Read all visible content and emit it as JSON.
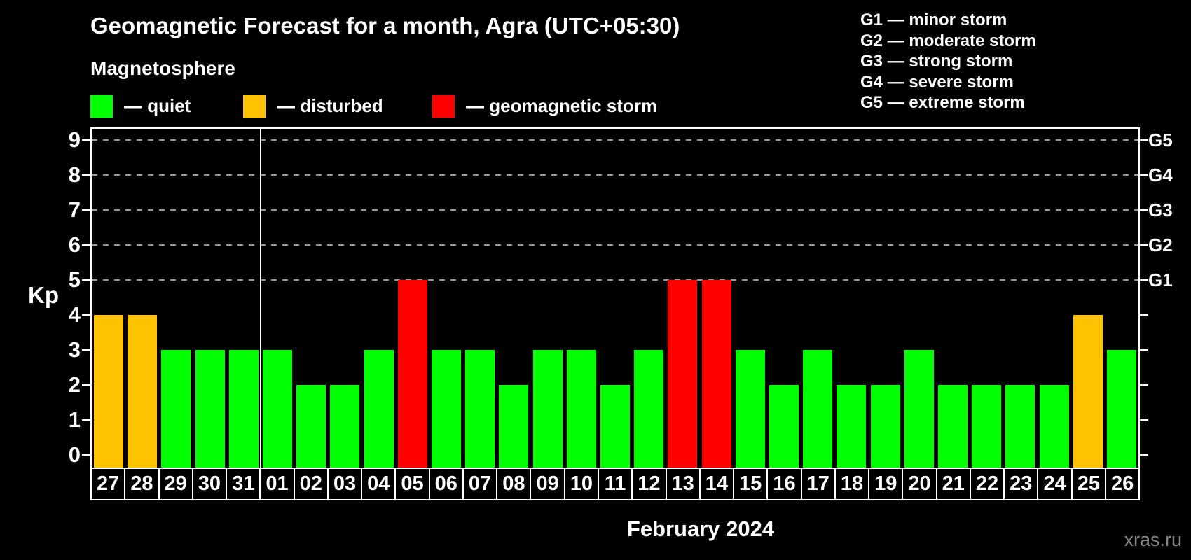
{
  "title": "Geomagnetic Forecast for a month, Agra (UTC+05:30)",
  "subtitle": "Magnetosphere",
  "legend": {
    "items": [
      {
        "label": "— quiet",
        "status": "quiet",
        "color": "#00ff00"
      },
      {
        "label": "— disturbed",
        "status": "disturbed",
        "color": "#ffc200"
      },
      {
        "label": "— geomagnetic storm",
        "status": "storm",
        "color": "#ff0000"
      }
    ]
  },
  "g_legend": [
    "G1 — minor storm",
    "G2 — moderate storm",
    "G3 — strong storm",
    "G4 — severe storm",
    "G5 — extreme storm"
  ],
  "axes": {
    "y_label": "Kp",
    "y_ticks": [
      0,
      1,
      2,
      3,
      4,
      5,
      6,
      7,
      8,
      9
    ],
    "right_axis_ticks": [
      {
        "label": "G1",
        "kp": 5
      },
      {
        "label": "G2",
        "kp": 6
      },
      {
        "label": "G3",
        "kp": 7
      },
      {
        "label": "G4",
        "kp": 8
      },
      {
        "label": "G5",
        "kp": 9
      }
    ],
    "x_title": "February 2024"
  },
  "watermark": "xras.ru",
  "chart_data": {
    "type": "bar",
    "title": "Geomagnetic Forecast for a month, Agra (UTC+05:30)",
    "ylabel": "Kp",
    "ylim": [
      0,
      9
    ],
    "grid_levels": [
      5,
      6,
      7,
      8,
      9
    ],
    "legend_position": "top",
    "month_separator_after_index": 4,
    "categories": [
      "27",
      "28",
      "29",
      "30",
      "31",
      "01",
      "02",
      "03",
      "04",
      "05",
      "06",
      "07",
      "08",
      "09",
      "10",
      "11",
      "12",
      "13",
      "14",
      "15",
      "16",
      "17",
      "18",
      "19",
      "20",
      "21",
      "22",
      "23",
      "24",
      "25",
      "26"
    ],
    "values": [
      4,
      4,
      3,
      3,
      3,
      3,
      2,
      2,
      3,
      5,
      3,
      3,
      2,
      3,
      3,
      2,
      3,
      5,
      5,
      3,
      2,
      3,
      2,
      2,
      3,
      2,
      2,
      2,
      2,
      4,
      3
    ],
    "statuses": [
      "disturbed",
      "disturbed",
      "quiet",
      "quiet",
      "quiet",
      "quiet",
      "quiet",
      "quiet",
      "quiet",
      "storm",
      "quiet",
      "quiet",
      "quiet",
      "quiet",
      "quiet",
      "quiet",
      "quiet",
      "storm",
      "storm",
      "quiet",
      "quiet",
      "quiet",
      "quiet",
      "quiet",
      "quiet",
      "quiet",
      "quiet",
      "quiet",
      "quiet",
      "disturbed",
      "quiet"
    ],
    "colors": {
      "quiet": "#00ff00",
      "disturbed": "#ffc200",
      "storm": "#ff0000"
    }
  }
}
